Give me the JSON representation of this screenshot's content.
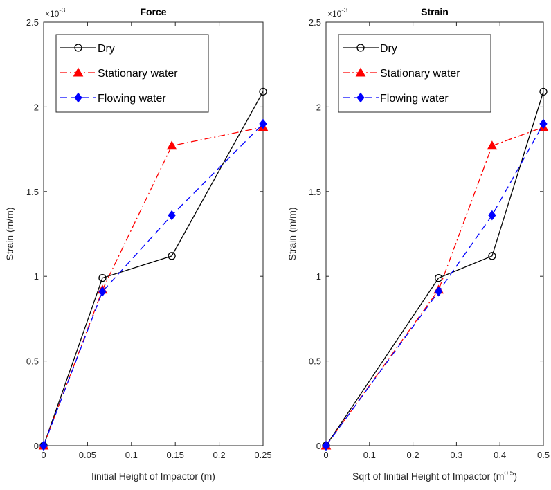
{
  "figure": {
    "exponent_text": "×10",
    "exponent_sup": "-3"
  },
  "chart_data": [
    {
      "type": "line",
      "title": "Force",
      "xlabel": "Iinitial Height of Impactor (m)",
      "xlabel_sup": "",
      "xlabel_suffix": "",
      "ylabel": "Strain (m/m)",
      "xlim": [
        0,
        0.25
      ],
      "ylim": [
        0,
        0.0025
      ],
      "xticks": [
        0,
        0.05,
        0.1,
        0.15,
        0.2,
        0.25
      ],
      "xtick_labels": [
        "0",
        "0.05",
        "0.1",
        "0.15",
        "0.2",
        "0.25"
      ],
      "yticks": [
        0,
        0.0005,
        0.001,
        0.0015,
        0.002,
        0.0025
      ],
      "ytick_labels": [
        "0",
        "0.5",
        "1",
        "1.5",
        "2",
        "2.5"
      ],
      "legend_position": "top-left",
      "series": [
        {
          "name": "Dry",
          "color": "#000000",
          "dash": "solid",
          "marker": "circle",
          "x": [
            0,
            0.067,
            0.146,
            0.25
          ],
          "y": [
            0,
            0.00099,
            0.00112,
            0.00209
          ]
        },
        {
          "name": "Stationary water",
          "color": "#ff0000",
          "dash": "dashdot",
          "marker": "triangle",
          "x": [
            0,
            0.067,
            0.146,
            0.25
          ],
          "y": [
            0,
            0.00092,
            0.00177,
            0.00188
          ]
        },
        {
          "name": "Flowing water",
          "color": "#0000ff",
          "dash": "dashed",
          "marker": "diamond",
          "x": [
            0,
            0.067,
            0.146,
            0.25
          ],
          "y": [
            0,
            0.00091,
            0.00136,
            0.0019
          ]
        }
      ]
    },
    {
      "type": "line",
      "title": "Strain",
      "xlabel": "Sqrt of Iinitial Height of Impactor (m",
      "xlabel_sup": "0.5",
      "xlabel_suffix": ")",
      "ylabel": "Strain (m/m)",
      "xlim": [
        0,
        0.5
      ],
      "ylim": [
        0,
        0.0025
      ],
      "xticks": [
        0,
        0.1,
        0.2,
        0.3,
        0.4,
        0.5
      ],
      "xtick_labels": [
        "0",
        "0.1",
        "0.2",
        "0.3",
        "0.4",
        "0.5"
      ],
      "yticks": [
        0,
        0.0005,
        0.001,
        0.0015,
        0.002,
        0.0025
      ],
      "ytick_labels": [
        "0",
        "0.5",
        "1",
        "1.5",
        "2",
        "2.5"
      ],
      "legend_position": "top-left",
      "series": [
        {
          "name": "Dry",
          "color": "#000000",
          "dash": "solid",
          "marker": "circle",
          "x": [
            0,
            0.259,
            0.382,
            0.5
          ],
          "y": [
            0,
            0.00099,
            0.00112,
            0.00209
          ]
        },
        {
          "name": "Stationary water",
          "color": "#ff0000",
          "dash": "dashdot",
          "marker": "triangle",
          "x": [
            0,
            0.259,
            0.382,
            0.5
          ],
          "y": [
            0,
            0.00092,
            0.00177,
            0.00188
          ]
        },
        {
          "name": "Flowing water",
          "color": "#0000ff",
          "dash": "dashed",
          "marker": "diamond",
          "x": [
            0,
            0.259,
            0.382,
            0.5
          ],
          "y": [
            0,
            0.00091,
            0.00136,
            0.0019
          ]
        }
      ]
    }
  ]
}
